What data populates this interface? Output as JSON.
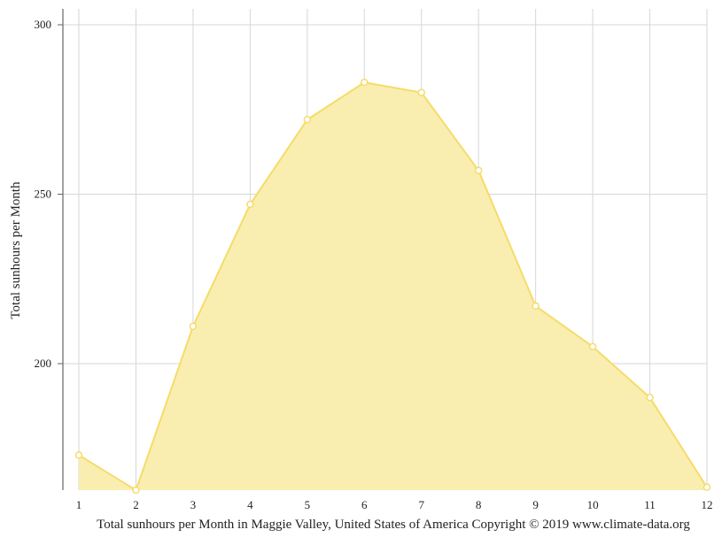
{
  "chart_data": {
    "type": "area",
    "title": "",
    "xlabel": "Total sunhours per Month in Maggie Valley, United States of America Copyright © 2019 www.climate-data.org",
    "ylabel": "Total sunhours per Month",
    "x": [
      1,
      2,
      3,
      4,
      5,
      6,
      7,
      8,
      9,
      10,
      11,
      12
    ],
    "x_tick_labels": [
      "1",
      "2",
      "3",
      "4",
      "5",
      "6",
      "7",
      "8",
      "9",
      "10",
      "11",
      "12"
    ],
    "y_ticks": [
      200,
      250,
      300
    ],
    "y_tick_labels": [
      "200",
      "250",
      "300"
    ],
    "ylim": [
      162.5,
      305
    ],
    "grid": true,
    "series": [
      {
        "values": [
          173,
          162.5,
          211,
          247,
          272,
          283,
          280,
          257,
          217,
          205,
          190,
          163.5
        ],
        "color": "#f5dc6a",
        "fill": "#f9eeaf"
      }
    ]
  }
}
